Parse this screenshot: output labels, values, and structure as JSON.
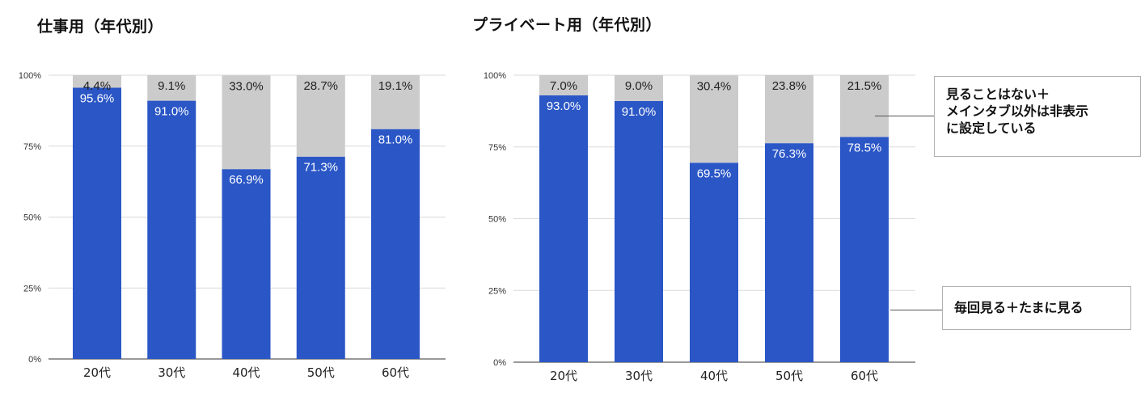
{
  "chart_data": [
    {
      "type": "bar",
      "stacked": true,
      "title": "仕事用（年代別）",
      "categories": [
        "20代",
        "30代",
        "40代",
        "50代",
        "60代"
      ],
      "series": [
        {
          "values": [
            95.6,
            91.0,
            66.9,
            71.3,
            81.0
          ],
          "color": "#2a56c6",
          "labels": [
            "95.6%",
            "91.0%",
            "66.9%",
            "71.3%",
            "81.0%"
          ]
        },
        {
          "values": [
            4.4,
            9.1,
            33.0,
            28.7,
            19.1
          ],
          "color": "#cbcbcb",
          "labels": [
            "4.4%",
            "9.1%",
            "33.0%",
            "28.7%",
            "19.1%"
          ]
        }
      ],
      "yticks": [
        "0%",
        "25%",
        "50%",
        "75%",
        "100%"
      ],
      "ylim": [
        0,
        100
      ],
      "grid": true
    },
    {
      "type": "bar",
      "stacked": true,
      "title": "プライベート用（年代別）",
      "categories": [
        "20代",
        "30代",
        "40代",
        "50代",
        "60代"
      ],
      "series": [
        {
          "name": "毎回見る＋たまに見る",
          "values": [
            93.0,
            91.0,
            69.5,
            76.3,
            78.5
          ],
          "color": "#2a56c6",
          "labels": [
            "93.0%",
            "91.0%",
            "69.5%",
            "76.3%",
            "78.5%"
          ]
        },
        {
          "name": "見ることはない＋メインタブ以外は非表示に設定している",
          "values": [
            7.0,
            9.0,
            30.4,
            23.8,
            21.5
          ],
          "color": "#cbcbcb",
          "labels": [
            "7.0%",
            "9.0%",
            "30.4%",
            "23.8%",
            "21.5%"
          ]
        }
      ],
      "yticks": [
        "0%",
        "25%",
        "50%",
        "75%",
        "100%"
      ],
      "ylim": [
        0,
        100
      ],
      "grid": true
    }
  ],
  "callouts": {
    "top_lines": [
      "見ることはない＋",
      "メインタブ以外は非表示",
      "に設定している"
    ],
    "bottom": "毎回見る＋たまに見る"
  }
}
